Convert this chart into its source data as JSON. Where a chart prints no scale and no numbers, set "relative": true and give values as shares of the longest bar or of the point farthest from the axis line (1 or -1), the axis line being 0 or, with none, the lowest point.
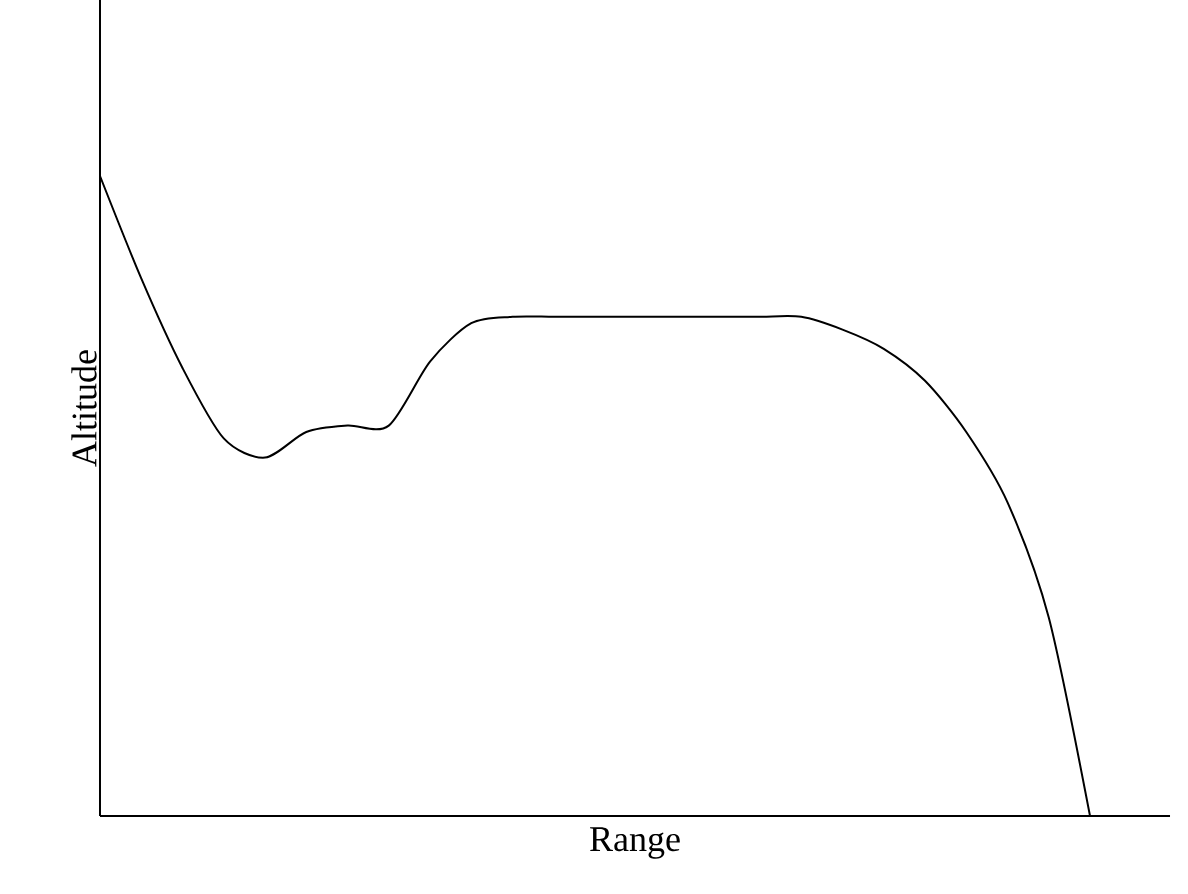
{
  "chart_data": {
    "type": "line",
    "relative": true,
    "xlabel": "Range",
    "ylabel": "Altitude",
    "color": "#000000",
    "categories": [
      null,
      null,
      null,
      null,
      null,
      null,
      null,
      null,
      null,
      null,
      null,
      null,
      null,
      null,
      null,
      null,
      null,
      null,
      null,
      null,
      null,
      null,
      null,
      null,
      null
    ],
    "values": [
      1.0,
      0.84,
      0.7,
      0.59,
      0.56,
      0.6,
      0.61,
      0.61,
      0.71,
      0.77,
      0.78,
      0.78,
      0.78,
      0.78,
      0.78,
      0.78,
      0.78,
      0.78,
      0.76,
      0.73,
      0.68,
      0.6,
      0.49,
      0.31,
      0.0
    ]
  }
}
